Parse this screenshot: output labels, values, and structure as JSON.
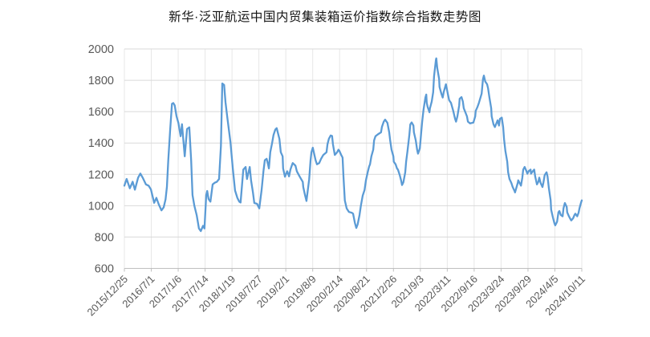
{
  "title": "新华·泛亚航运中国内贸集装箱运价指数综合指数走势图",
  "chart_data": {
    "type": "line",
    "title": "新华·泛亚航运中国内贸集装箱运价指数综合指数走势图",
    "series_name": "综合指数",
    "line_color": "#5B9BD5",
    "grid_color": "#D9D9D9",
    "v_grid_color": "#E7E7E7",
    "axis_color": "#BFBFBF",
    "axis_label_color": "#595959",
    "ylim": [
      600,
      2000
    ],
    "y_ticks": [
      600,
      800,
      1000,
      1200,
      1400,
      1600,
      1800,
      2000
    ],
    "x_tick_labels": [
      "2015/12/25",
      "2016/7/1",
      "2017/1/6",
      "2017/7/14",
      "2018/1/19",
      "2018/7/27",
      "2019/2/1",
      "2019/8/9",
      "2020/2/14",
      "2020/8/21",
      "2021/2/26",
      "2021/9/3",
      "2022/3/11",
      "2022/9/16",
      "2023/3/24",
      "2023/9/29",
      "2024/4/5",
      "2024/10/11"
    ],
    "legend": "none",
    "grid": "on",
    "points": [
      [
        0.0,
        1128
      ],
      [
        0.005,
        1171
      ],
      [
        0.012,
        1111
      ],
      [
        0.018,
        1153
      ],
      [
        0.023,
        1102
      ],
      [
        0.03,
        1179
      ],
      [
        0.035,
        1205
      ],
      [
        0.04,
        1179
      ],
      [
        0.047,
        1136
      ],
      [
        0.053,
        1128
      ],
      [
        0.058,
        1103
      ],
      [
        0.065,
        1018
      ],
      [
        0.07,
        1050
      ],
      [
        0.075,
        1009
      ],
      [
        0.081,
        970
      ],
      [
        0.086,
        990
      ],
      [
        0.09,
        1040
      ],
      [
        0.093,
        1120
      ],
      [
        0.096,
        1290
      ],
      [
        0.1,
        1480
      ],
      [
        0.104,
        1650
      ],
      [
        0.107,
        1655
      ],
      [
        0.11,
        1640
      ],
      [
        0.114,
        1570
      ],
      [
        0.118,
        1528
      ],
      [
        0.123,
        1443
      ],
      [
        0.126,
        1520
      ],
      [
        0.132,
        1315
      ],
      [
        0.137,
        1489
      ],
      [
        0.142,
        1500
      ],
      [
        0.146,
        1290
      ],
      [
        0.149,
        1068
      ],
      [
        0.153,
        1000
      ],
      [
        0.158,
        940
      ],
      [
        0.163,
        855
      ],
      [
        0.167,
        838
      ],
      [
        0.172,
        872
      ],
      [
        0.175,
        855
      ],
      [
        0.179,
        1068
      ],
      [
        0.181,
        1094
      ],
      [
        0.184,
        1043
      ],
      [
        0.188,
        1026
      ],
      [
        0.193,
        1136
      ],
      [
        0.198,
        1147
      ],
      [
        0.202,
        1152
      ],
      [
        0.207,
        1170
      ],
      [
        0.211,
        1380
      ],
      [
        0.214,
        1780
      ],
      [
        0.218,
        1770
      ],
      [
        0.221,
        1660
      ],
      [
        0.225,
        1562
      ],
      [
        0.232,
        1404
      ],
      [
        0.237,
        1238
      ],
      [
        0.242,
        1097
      ],
      [
        0.247,
        1050
      ],
      [
        0.251,
        1026
      ],
      [
        0.254,
        1020
      ],
      [
        0.26,
        1230
      ],
      [
        0.265,
        1247
      ],
      [
        0.268,
        1170
      ],
      [
        0.274,
        1247
      ],
      [
        0.277,
        1160
      ],
      [
        0.281,
        1085
      ],
      [
        0.284,
        1017
      ],
      [
        0.29,
        1012
      ],
      [
        0.295,
        983
      ],
      [
        0.3,
        1100
      ],
      [
        0.304,
        1220
      ],
      [
        0.307,
        1290
      ],
      [
        0.311,
        1299
      ],
      [
        0.314,
        1264
      ],
      [
        0.316,
        1238
      ],
      [
        0.319,
        1341
      ],
      [
        0.323,
        1400
      ],
      [
        0.326,
        1450
      ],
      [
        0.33,
        1486
      ],
      [
        0.333,
        1495
      ],
      [
        0.339,
        1426
      ],
      [
        0.342,
        1341
      ],
      [
        0.346,
        1315
      ],
      [
        0.347,
        1238
      ],
      [
        0.351,
        1185
      ],
      [
        0.356,
        1220
      ],
      [
        0.36,
        1187
      ],
      [
        0.363,
        1230
      ],
      [
        0.367,
        1264
      ],
      [
        0.368,
        1272
      ],
      [
        0.374,
        1255
      ],
      [
        0.377,
        1220
      ],
      [
        0.383,
        1187
      ],
      [
        0.39,
        1152
      ],
      [
        0.391,
        1119
      ],
      [
        0.395,
        1068
      ],
      [
        0.398,
        1030
      ],
      [
        0.404,
        1170
      ],
      [
        0.407,
        1290
      ],
      [
        0.409,
        1341
      ],
      [
        0.412,
        1370
      ],
      [
        0.418,
        1290
      ],
      [
        0.421,
        1264
      ],
      [
        0.426,
        1272
      ],
      [
        0.43,
        1299
      ],
      [
        0.435,
        1324
      ],
      [
        0.442,
        1341
      ],
      [
        0.444,
        1392
      ],
      [
        0.447,
        1426
      ],
      [
        0.451,
        1448
      ],
      [
        0.454,
        1445
      ],
      [
        0.456,
        1392
      ],
      [
        0.46,
        1324
      ],
      [
        0.465,
        1341
      ],
      [
        0.468,
        1357
      ],
      [
        0.47,
        1350
      ],
      [
        0.474,
        1324
      ],
      [
        0.477,
        1307
      ],
      [
        0.479,
        1187
      ],
      [
        0.482,
        1034
      ],
      [
        0.486,
        983
      ],
      [
        0.491,
        960
      ],
      [
        0.497,
        955
      ],
      [
        0.5,
        949
      ],
      [
        0.504,
        889
      ],
      [
        0.507,
        858
      ],
      [
        0.51,
        881
      ],
      [
        0.514,
        940
      ],
      [
        0.517,
        1000
      ],
      [
        0.521,
        1065
      ],
      [
        0.525,
        1100
      ],
      [
        0.528,
        1162
      ],
      [
        0.532,
        1213
      ],
      [
        0.535,
        1250
      ],
      [
        0.537,
        1264
      ],
      [
        0.54,
        1315
      ],
      [
        0.544,
        1357
      ],
      [
        0.546,
        1417
      ],
      [
        0.549,
        1443
      ],
      [
        0.554,
        1455
      ],
      [
        0.561,
        1468
      ],
      [
        0.563,
        1502
      ],
      [
        0.567,
        1536
      ],
      [
        0.57,
        1549
      ],
      [
        0.575,
        1528
      ],
      [
        0.579,
        1468
      ],
      [
        0.581,
        1417
      ],
      [
        0.584,
        1357
      ],
      [
        0.588,
        1315
      ],
      [
        0.589,
        1281
      ],
      [
        0.593,
        1264
      ],
      [
        0.596,
        1238
      ],
      [
        0.598,
        1230
      ],
      [
        0.602,
        1196
      ],
      [
        0.605,
        1162
      ],
      [
        0.607,
        1132
      ],
      [
        0.61,
        1150
      ],
      [
        0.614,
        1213
      ],
      [
        0.616,
        1281
      ],
      [
        0.619,
        1349
      ],
      [
        0.623,
        1451
      ],
      [
        0.625,
        1519
      ],
      [
        0.628,
        1531
      ],
      [
        0.632,
        1511
      ],
      [
        0.633,
        1468
      ],
      [
        0.637,
        1417
      ],
      [
        0.64,
        1357
      ],
      [
        0.642,
        1332
      ],
      [
        0.646,
        1366
      ],
      [
        0.649,
        1468
      ],
      [
        0.651,
        1536
      ],
      [
        0.654,
        1613
      ],
      [
        0.658,
        1690
      ],
      [
        0.66,
        1709
      ],
      [
        0.661,
        1656
      ],
      [
        0.663,
        1630
      ],
      [
        0.667,
        1596
      ],
      [
        0.668,
        1622
      ],
      [
        0.672,
        1664
      ],
      [
        0.675,
        1724
      ],
      [
        0.677,
        1826
      ],
      [
        0.681,
        1930
      ],
      [
        0.682,
        1940
      ],
      [
        0.684,
        1877
      ],
      [
        0.688,
        1809
      ],
      [
        0.689,
        1758
      ],
      [
        0.693,
        1715
      ],
      [
        0.696,
        1690
      ],
      [
        0.698,
        1724
      ],
      [
        0.703,
        1775
      ],
      [
        0.707,
        1715
      ],
      [
        0.71,
        1673
      ],
      [
        0.714,
        1656
      ],
      [
        0.719,
        1605
      ],
      [
        0.723,
        1554
      ],
      [
        0.725,
        1536
      ],
      [
        0.728,
        1570
      ],
      [
        0.732,
        1639
      ],
      [
        0.733,
        1682
      ],
      [
        0.737,
        1693
      ],
      [
        0.74,
        1664
      ],
      [
        0.742,
        1622
      ],
      [
        0.749,
        1570
      ],
      [
        0.751,
        1536
      ],
      [
        0.756,
        1525
      ],
      [
        0.763,
        1530
      ],
      [
        0.767,
        1570
      ],
      [
        0.768,
        1605
      ],
      [
        0.772,
        1630
      ],
      [
        0.775,
        1656
      ],
      [
        0.781,
        1715
      ],
      [
        0.784,
        1809
      ],
      [
        0.786,
        1830
      ],
      [
        0.789,
        1792
      ],
      [
        0.793,
        1775
      ],
      [
        0.795,
        1749
      ],
      [
        0.798,
        1690
      ],
      [
        0.802,
        1622
      ],
      [
        0.803,
        1570
      ],
      [
        0.807,
        1519
      ],
      [
        0.81,
        1502
      ],
      [
        0.816,
        1545
      ],
      [
        0.819,
        1511
      ],
      [
        0.821,
        1554
      ],
      [
        0.825,
        1562
      ],
      [
        0.828,
        1502
      ],
      [
        0.83,
        1426
      ],
      [
        0.833,
        1349
      ],
      [
        0.837,
        1281
      ],
      [
        0.839,
        1213
      ],
      [
        0.842,
        1170
      ],
      [
        0.846,
        1145
      ],
      [
        0.849,
        1119
      ],
      [
        0.853,
        1094
      ],
      [
        0.854,
        1085
      ],
      [
        0.86,
        1145
      ],
      [
        0.861,
        1162
      ],
      [
        0.867,
        1128
      ],
      [
        0.87,
        1179
      ],
      [
        0.872,
        1230
      ],
      [
        0.875,
        1247
      ],
      [
        0.879,
        1221
      ],
      [
        0.881,
        1204
      ],
      [
        0.884,
        1221
      ],
      [
        0.888,
        1230
      ],
      [
        0.889,
        1204
      ],
      [
        0.893,
        1220
      ],
      [
        0.896,
        1230
      ],
      [
        0.898,
        1187
      ],
      [
        0.902,
        1136
      ],
      [
        0.905,
        1153
      ],
      [
        0.907,
        1179
      ],
      [
        0.91,
        1145
      ],
      [
        0.914,
        1119
      ],
      [
        0.916,
        1145
      ],
      [
        0.919,
        1196
      ],
      [
        0.923,
        1213
      ],
      [
        0.925,
        1187
      ],
      [
        0.928,
        1111
      ],
      [
        0.932,
        1034
      ],
      [
        0.933,
        975
      ],
      [
        0.937,
        923
      ],
      [
        0.94,
        889
      ],
      [
        0.942,
        875
      ],
      [
        0.946,
        898
      ],
      [
        0.949,
        958
      ],
      [
        0.951,
        966
      ],
      [
        0.954,
        941
      ],
      [
        0.958,
        932
      ],
      [
        0.96,
        983
      ],
      [
        0.963,
        1017
      ],
      [
        0.967,
        992
      ],
      [
        0.968,
        958
      ],
      [
        0.972,
        932
      ],
      [
        0.975,
        915
      ],
      [
        0.977,
        906
      ],
      [
        0.981,
        920
      ],
      [
        0.984,
        941
      ],
      [
        0.986,
        949
      ],
      [
        0.99,
        932
      ],
      [
        0.993,
        955
      ],
      [
        0.995,
        983
      ],
      [
        0.998,
        1017
      ],
      [
        1.0,
        1034
      ]
    ]
  }
}
